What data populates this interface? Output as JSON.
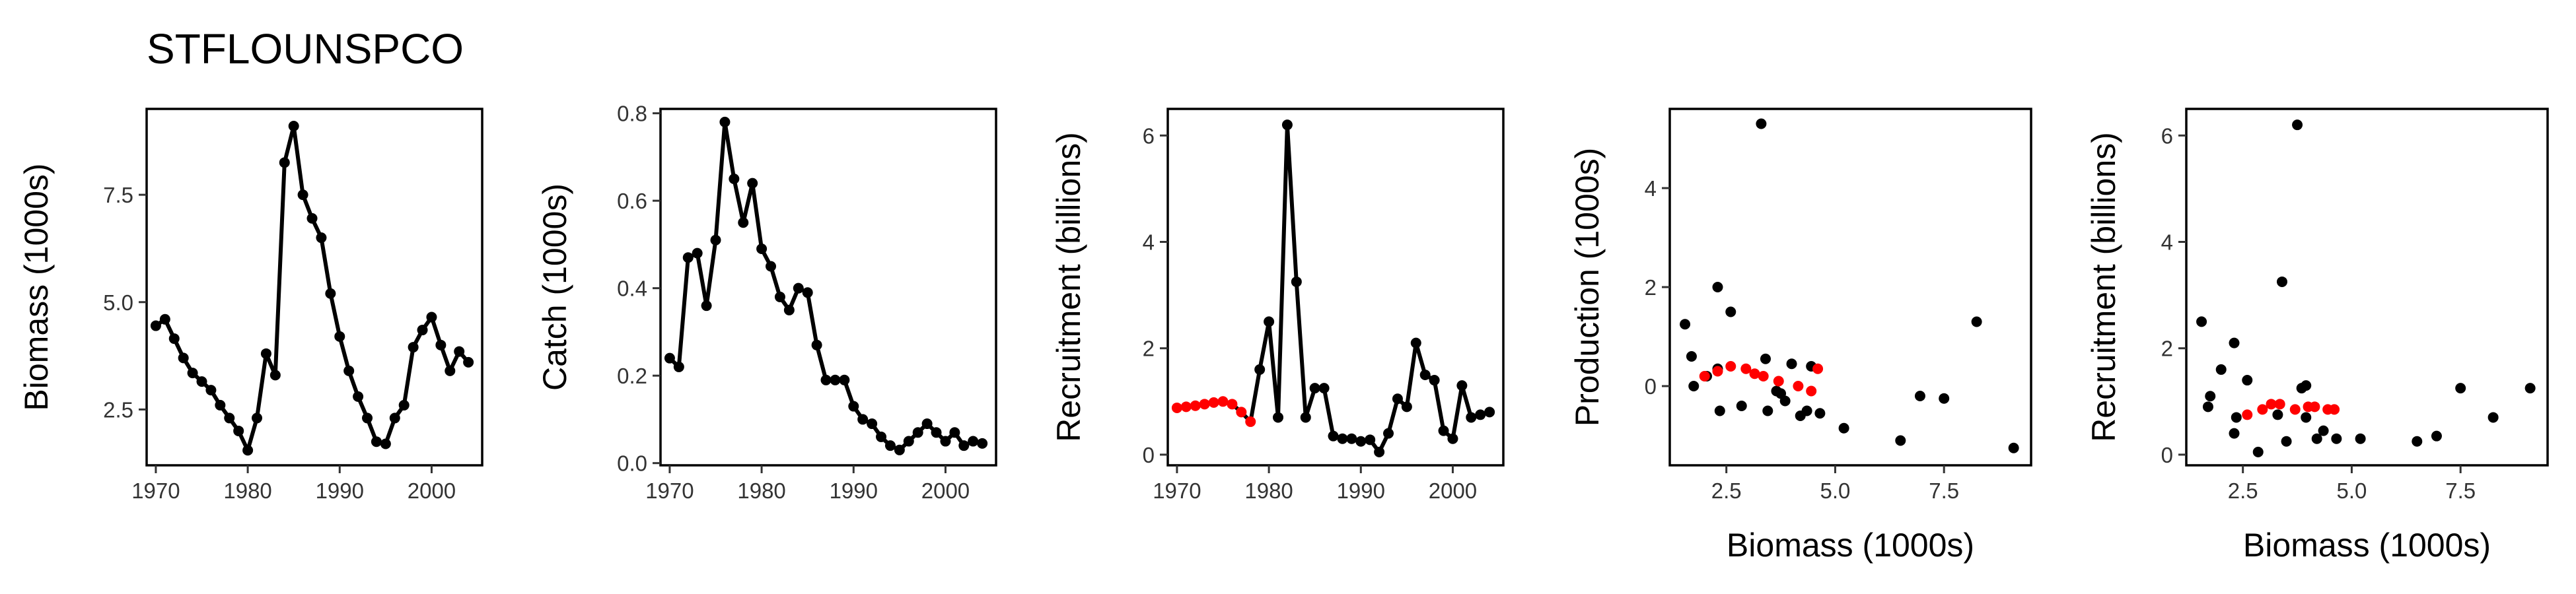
{
  "title": "STFLOUNSPCO",
  "colors": {
    "observed": "#000000",
    "highlight": "#ff0000"
  },
  "chart_data": [
    {
      "type": "line",
      "xlabel": "",
      "ylabel": "Biomass (1000s)",
      "xlim": [
        1969,
        2005.5
      ],
      "ylim": [
        1.2,
        9.5
      ],
      "xticks": [
        1970,
        1980,
        1990,
        2000
      ],
      "xtick_labels": [
        "1970",
        "1980",
        "1990",
        "2000"
      ],
      "yticks": [
        2.5,
        5.0,
        7.5
      ],
      "ytick_labels": [
        "2.5",
        "5.0",
        "7.5"
      ],
      "x": [
        1970,
        1971,
        1972,
        1973,
        1974,
        1975,
        1976,
        1977,
        1978,
        1979,
        1980,
        1981,
        1982,
        1983,
        1984,
        1985,
        1986,
        1987,
        1988,
        1989,
        1990,
        1991,
        1992,
        1993,
        1994,
        1995,
        1996,
        1997,
        1998,
        1999,
        2000,
        2001,
        2002,
        2003,
        2004
      ],
      "y": [
        4.45,
        4.6,
        4.15,
        3.7,
        3.35,
        3.15,
        2.95,
        2.6,
        2.3,
        2.0,
        1.55,
        2.3,
        3.8,
        3.3,
        8.25,
        9.1,
        7.5,
        6.95,
        6.5,
        5.2,
        4.2,
        3.4,
        2.8,
        2.3,
        1.75,
        1.7,
        2.3,
        2.6,
        3.95,
        4.35,
        4.65,
        4.0,
        3.4,
        3.85,
        3.6
      ],
      "grid": false
    },
    {
      "type": "line",
      "xlabel": "",
      "ylabel": "Catch (1000s)",
      "xlim": [
        1969,
        2005.5
      ],
      "ylim": [
        -0.005,
        0.81
      ],
      "xticks": [
        1970,
        1980,
        1990,
        2000
      ],
      "xtick_labels": [
        "1970",
        "1980",
        "1990",
        "2000"
      ],
      "yticks": [
        0.0,
        0.2,
        0.4,
        0.6,
        0.8
      ],
      "ytick_labels": [
        "0.0",
        "0.2",
        "0.4",
        "0.6",
        "0.8"
      ],
      "x": [
        1970,
        1971,
        1972,
        1973,
        1974,
        1975,
        1976,
        1977,
        1978,
        1979,
        1980,
        1981,
        1982,
        1983,
        1984,
        1985,
        1986,
        1987,
        1988,
        1989,
        1990,
        1991,
        1992,
        1993,
        1994,
        1995,
        1996,
        1997,
        1998,
        1999,
        2000,
        2001,
        2002,
        2003,
        2004
      ],
      "y": [
        0.24,
        0.22,
        0.47,
        0.48,
        0.36,
        0.51,
        0.78,
        0.65,
        0.55,
        0.64,
        0.49,
        0.45,
        0.38,
        0.35,
        0.4,
        0.39,
        0.27,
        0.19,
        0.19,
        0.19,
        0.13,
        0.1,
        0.09,
        0.06,
        0.04,
        0.03,
        0.05,
        0.07,
        0.09,
        0.07,
        0.05,
        0.07,
        0.04,
        0.05,
        0.045
      ],
      "grid": false
    },
    {
      "type": "line",
      "xlabel": "",
      "ylabel": "Recruitment (billions)",
      "xlim": [
        1969,
        2005.5
      ],
      "ylim": [
        -0.2,
        6.5
      ],
      "xticks": [
        1970,
        1980,
        1990,
        2000
      ],
      "xtick_labels": [
        "1970",
        "1980",
        "1990",
        "2000"
      ],
      "yticks": [
        0,
        2,
        4,
        6
      ],
      "ytick_labels": [
        "0",
        "2",
        "4",
        "6"
      ],
      "x": [
        1970,
        1971,
        1972,
        1973,
        1974,
        1975,
        1976,
        1977,
        1978,
        1979,
        1980,
        1981,
        1982,
        1983,
        1984,
        1985,
        1986,
        1987,
        1988,
        1989,
        1990,
        1991,
        1992,
        1993,
        1994,
        1995,
        1996,
        1997,
        1998,
        1999,
        2000,
        2001,
        2002,
        2003,
        2004
      ],
      "y": [
        0.88,
        0.9,
        0.92,
        0.95,
        0.98,
        1.0,
        0.95,
        0.8,
        0.62,
        1.6,
        2.5,
        0.7,
        6.2,
        3.25,
        0.7,
        1.25,
        1.25,
        0.35,
        0.3,
        0.3,
        0.25,
        0.28,
        0.05,
        0.4,
        1.05,
        0.9,
        2.1,
        1.5,
        1.4,
        0.45,
        0.3,
        1.3,
        0.7,
        0.75,
        0.8
      ],
      "highlight_x": [
        1970,
        1971,
        1972,
        1973,
        1974,
        1975,
        1976,
        1977,
        1978
      ],
      "grid": false
    },
    {
      "type": "scatter",
      "xlabel": "Biomass (1000s)",
      "ylabel": "Production (1000s)",
      "xlim": [
        1.2,
        9.5
      ],
      "ylim": [
        -1.6,
        5.6
      ],
      "xticks": [
        2.5,
        5.0,
        7.5
      ],
      "xtick_labels": [
        "2.5",
        "5.0",
        "7.5"
      ],
      "yticks": [
        0,
        2,
        4
      ],
      "ytick_labels": [
        "0",
        "2",
        "4"
      ],
      "points": [
        {
          "x": 1.55,
          "y": 1.25
        },
        {
          "x": 1.7,
          "y": 0.6
        },
        {
          "x": 1.75,
          "y": 0.0
        },
        {
          "x": 2.05,
          "y": 0.2
        },
        {
          "x": 2.3,
          "y": 2.0
        },
        {
          "x": 2.35,
          "y": -0.5
        },
        {
          "x": 2.3,
          "y": 0.35
        },
        {
          "x": 2.6,
          "y": 1.5
        },
        {
          "x": 2.85,
          "y": -0.4
        },
        {
          "x": 3.3,
          "y": 5.3
        },
        {
          "x": 3.4,
          "y": 0.55
        },
        {
          "x": 3.45,
          "y": -0.5
        },
        {
          "x": 3.65,
          "y": -0.1
        },
        {
          "x": 3.75,
          "y": -0.15
        },
        {
          "x": 3.85,
          "y": -0.3
        },
        {
          "x": 4.0,
          "y": 0.45
        },
        {
          "x": 4.2,
          "y": -0.6
        },
        {
          "x": 4.35,
          "y": -0.5
        },
        {
          "x": 4.45,
          "y": 0.4
        },
        {
          "x": 4.65,
          "y": -0.55
        },
        {
          "x": 5.2,
          "y": -0.85
        },
        {
          "x": 6.5,
          "y": -1.1
        },
        {
          "x": 6.95,
          "y": -0.2
        },
        {
          "x": 7.5,
          "y": -0.25
        },
        {
          "x": 8.25,
          "y": 1.3
        },
        {
          "x": 9.1,
          "y": -1.25
        }
      ],
      "highlight_points": [
        {
          "x": 2.0,
          "y": 0.2
        },
        {
          "x": 2.3,
          "y": 0.3
        },
        {
          "x": 2.6,
          "y": 0.4
        },
        {
          "x": 2.95,
          "y": 0.35
        },
        {
          "x": 3.15,
          "y": 0.25
        },
        {
          "x": 3.35,
          "y": 0.2
        },
        {
          "x": 3.7,
          "y": 0.1
        },
        {
          "x": 4.15,
          "y": 0.0
        },
        {
          "x": 4.45,
          "y": -0.1
        },
        {
          "x": 4.6,
          "y": 0.35
        }
      ],
      "grid": false
    },
    {
      "type": "scatter",
      "xlabel": "Biomass (1000s)",
      "ylabel": "Recruitment (billions)",
      "xlim": [
        1.2,
        9.5
      ],
      "ylim": [
        -0.2,
        6.5
      ],
      "xticks": [
        2.5,
        5.0,
        7.5
      ],
      "xtick_labels": [
        "2.5",
        "5.0",
        "7.5"
      ],
      "yticks": [
        0,
        2,
        4,
        6
      ],
      "ytick_labels": [
        "0",
        "2",
        "4",
        "6"
      ],
      "points": [
        {
          "x": 1.55,
          "y": 2.5
        },
        {
          "x": 1.7,
          "y": 0.9
        },
        {
          "x": 1.75,
          "y": 1.1
        },
        {
          "x": 2.0,
          "y": 1.6
        },
        {
          "x": 2.3,
          "y": 2.1
        },
        {
          "x": 2.3,
          "y": 0.4
        },
        {
          "x": 2.35,
          "y": 0.7
        },
        {
          "x": 2.6,
          "y": 1.4
        },
        {
          "x": 2.85,
          "y": 0.05
        },
        {
          "x": 3.3,
          "y": 0.75
        },
        {
          "x": 3.4,
          "y": 3.25
        },
        {
          "x": 3.5,
          "y": 0.25
        },
        {
          "x": 3.75,
          "y": 6.2
        },
        {
          "x": 3.85,
          "y": 1.25
        },
        {
          "x": 3.95,
          "y": 1.3
        },
        {
          "x": 3.95,
          "y": 0.7
        },
        {
          "x": 4.2,
          "y": 0.3
        },
        {
          "x": 4.35,
          "y": 0.45
        },
        {
          "x": 4.65,
          "y": 0.3
        },
        {
          "x": 5.2,
          "y": 0.3
        },
        {
          "x": 6.5,
          "y": 0.25
        },
        {
          "x": 6.95,
          "y": 0.35
        },
        {
          "x": 7.5,
          "y": 1.25
        },
        {
          "x": 8.25,
          "y": 0.7
        },
        {
          "x": 9.1,
          "y": 1.25
        }
      ],
      "highlight_points": [
        {
          "x": 2.6,
          "y": 0.75
        },
        {
          "x": 2.95,
          "y": 0.85
        },
        {
          "x": 3.15,
          "y": 0.95
        },
        {
          "x": 3.35,
          "y": 0.95
        },
        {
          "x": 3.7,
          "y": 0.85
        },
        {
          "x": 4.0,
          "y": 0.9
        },
        {
          "x": 4.15,
          "y": 0.9
        },
        {
          "x": 4.45,
          "y": 0.85
        },
        {
          "x": 4.6,
          "y": 0.85
        }
      ],
      "grid": false
    }
  ]
}
